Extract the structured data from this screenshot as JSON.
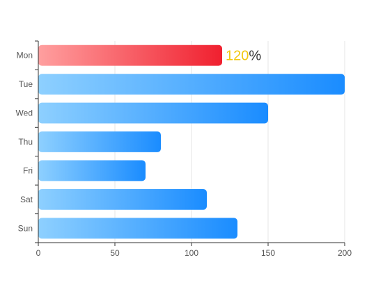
{
  "chart_data": {
    "type": "bar",
    "orientation": "horizontal",
    "categories": [
      "Mon",
      "Tue",
      "Wed",
      "Thu",
      "Fri",
      "Sat",
      "Sun"
    ],
    "values": [
      120,
      200,
      150,
      80,
      70,
      110,
      130
    ],
    "xlim": [
      0,
      200
    ],
    "xticks": [
      0,
      50,
      100,
      150,
      200
    ],
    "grid": true,
    "highlight": {
      "category": "Mon",
      "value_label": "120",
      "suffix": "%",
      "value_color": "#f2c811",
      "suffix_color": "#333333"
    },
    "colors": {
      "normal_start": "#8ed0ff",
      "normal_end": "#1a8cff",
      "highlight_start": "#ff9f9f",
      "highlight_end": "#f0202f",
      "axis": "#333333",
      "grid": "#e6e6e6"
    }
  }
}
